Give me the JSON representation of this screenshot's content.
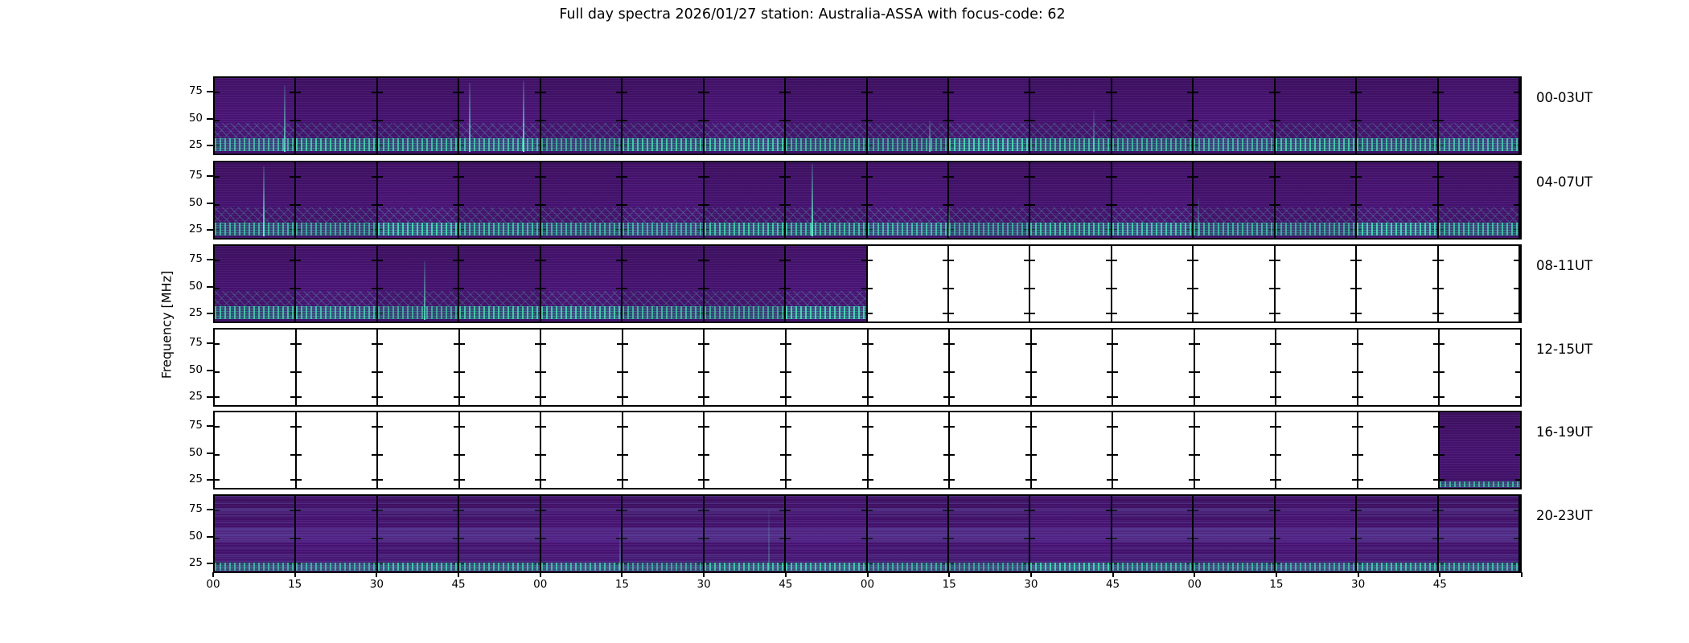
{
  "figure": {
    "title": "Full day spectra 2026/01/27 station: Australia-ASSA with focus-code: 62",
    "background": "#ffffff"
  },
  "axes": {
    "ylabel": "Frequency [MHz]",
    "yticks": [
      "75",
      "50",
      "25"
    ],
    "xticks": [
      "00",
      "15",
      "30",
      "45",
      "00",
      "15",
      "30",
      "45",
      "00",
      "15",
      "30",
      "45",
      "00",
      "15",
      "30",
      "45"
    ]
  },
  "colors": {
    "spectrogram_base": "#421168",
    "spectrogram_stripe": "#a596e1",
    "rfi_band_teal": "#35c4a0",
    "burst_teal": "#63ecc9",
    "panel_border": "#000000",
    "empty_panel": "#ffffff",
    "text": "#000000"
  },
  "rows": [
    {
      "label": "00-03UT",
      "style": "speckled",
      "panels": [
        1,
        1,
        1,
        1,
        1,
        1,
        1,
        1,
        1,
        1,
        1,
        1,
        1,
        1,
        1,
        1
      ],
      "bursts": [
        {
          "f": 0.053,
          "h": 0.88,
          "o": 0.85
        },
        {
          "f": 0.195,
          "h": 0.92,
          "o": 0.9
        },
        {
          "f": 0.236,
          "h": 0.94,
          "o": 1
        },
        {
          "f": 0.547,
          "h": 0.42,
          "o": 0.7
        },
        {
          "f": 0.673,
          "h": 0.55,
          "o": 0.5
        }
      ]
    },
    {
      "label": "04-07UT",
      "style": "speckled",
      "panels": [
        1,
        1,
        1,
        1,
        1,
        1,
        1,
        1,
        1,
        1,
        1,
        1,
        1,
        1,
        1,
        1
      ],
      "bursts": [
        {
          "f": 0.037,
          "h": 0.93,
          "o": 1
        },
        {
          "f": 0.457,
          "h": 0.96,
          "o": 1
        },
        {
          "f": 0.562,
          "h": 0.4,
          "o": 0.55
        },
        {
          "f": 0.753,
          "h": 0.5,
          "o": 0.5
        }
      ]
    },
    {
      "label": "08-11UT",
      "style": "speckled",
      "panels": [
        1,
        1,
        1,
        1,
        1,
        1,
        1,
        1,
        0,
        0,
        0,
        0,
        0,
        0,
        0,
        0
      ],
      "bursts": [
        {
          "f": 0.16,
          "h": 0.78,
          "o": 0.8
        }
      ]
    },
    {
      "label": "12-15UT",
      "style": "speckled",
      "panels": [
        0,
        0,
        0,
        0,
        0,
        0,
        0,
        0,
        0,
        0,
        0,
        0,
        0,
        0,
        0,
        0
      ],
      "bursts": []
    },
    {
      "label": "16-19UT",
      "style": "sparse",
      "panels": [
        0,
        0,
        0,
        0,
        0,
        0,
        0,
        0,
        0,
        0,
        0,
        0,
        0,
        0,
        0,
        1
      ],
      "bursts": []
    },
    {
      "label": "20-23UT",
      "style": "banded",
      "panels": [
        1,
        1,
        1,
        1,
        1,
        1,
        1,
        1,
        1,
        1,
        1,
        1,
        1,
        1,
        1,
        1
      ],
      "bursts": [
        {
          "f": 0.31,
          "h": 0.5,
          "o": 0.35
        },
        {
          "f": 0.424,
          "h": 0.8,
          "o": 0.3
        }
      ]
    }
  ],
  "chart_data": {
    "type": "heatmap",
    "subtype": "solar-radio-spectrogram-grid",
    "title": "Full day spectra 2026/01/27 station: Australia-ASSA with focus-code: 62",
    "date": "2026/01/27",
    "station": "Australia-ASSA",
    "focus_code": 62,
    "ylabel": "Frequency [MHz]",
    "ytick_values_mhz": [
      75,
      50,
      25
    ],
    "ylim_mhz_estimated": [
      15,
      90
    ],
    "x_axis": "minutes within each 15-min panel column, labels 00/15/30/45 repeating over 4 hours",
    "panels_per_row": 16,
    "panel_duration_minutes": 15,
    "row_time_ranges_ut": [
      "00-03UT",
      "04-07UT",
      "08-11UT",
      "12-15UT",
      "16-19UT",
      "20-23UT"
    ],
    "data_availability": [
      {
        "row": "00-03UT",
        "panels_with_data": [
          1,
          1,
          1,
          1,
          1,
          1,
          1,
          1,
          1,
          1,
          1,
          1,
          1,
          1,
          1,
          1
        ]
      },
      {
        "row": "04-07UT",
        "panels_with_data": [
          1,
          1,
          1,
          1,
          1,
          1,
          1,
          1,
          1,
          1,
          1,
          1,
          1,
          1,
          1,
          1
        ]
      },
      {
        "row": "08-11UT",
        "panels_with_data": [
          1,
          1,
          1,
          1,
          1,
          1,
          1,
          1,
          0,
          0,
          0,
          0,
          0,
          0,
          0,
          0
        ]
      },
      {
        "row": "12-15UT",
        "panels_with_data": [
          0,
          0,
          0,
          0,
          0,
          0,
          0,
          0,
          0,
          0,
          0,
          0,
          0,
          0,
          0,
          0
        ]
      },
      {
        "row": "16-19UT",
        "panels_with_data": [
          0,
          0,
          0,
          0,
          0,
          0,
          0,
          0,
          0,
          0,
          0,
          0,
          0,
          0,
          0,
          1
        ]
      },
      {
        "row": "20-23UT",
        "panels_with_data": [
          1,
          1,
          1,
          1,
          1,
          1,
          1,
          1,
          1,
          1,
          1,
          1,
          1,
          1,
          1,
          1
        ]
      }
    ],
    "colormap": "viridis (dark purple background, teal/green RFI band near 20-25 MHz, bright vertical burst lines)",
    "legend": "none",
    "grid": "off"
  }
}
